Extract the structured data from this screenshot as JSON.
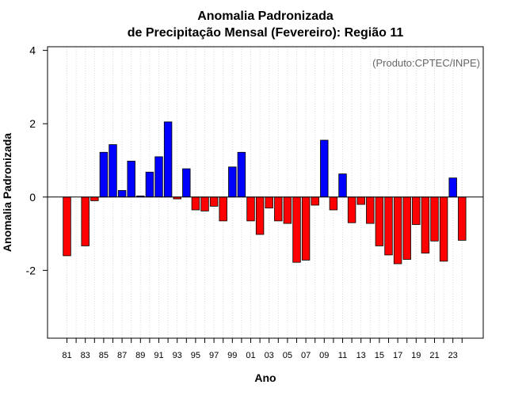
{
  "chart_data": {
    "type": "bar",
    "title_line1": "Anomalia Padronizada",
    "title_line2": "de Precipitação Mensal (Fevereiro): Região 11",
    "xlabel": "Ano",
    "ylabel": "Anomalia Padronizada",
    "credit": "(Produto:CPTEC/INPE)",
    "ylim": [
      -3.85,
      4.1
    ],
    "yticks": [
      -2,
      0,
      2,
      4
    ],
    "yticklabels": [
      "-2",
      "0",
      "2",
      "4"
    ],
    "grid": "vertical dotted lines at each year",
    "categories": [
      "81",
      "82",
      "83",
      "84",
      "85",
      "86",
      "87",
      "88",
      "89",
      "90",
      "91",
      "92",
      "93",
      "94",
      "95",
      "96",
      "97",
      "98",
      "99",
      "00",
      "01",
      "02",
      "03",
      "04",
      "05",
      "06",
      "07",
      "08",
      "09",
      "10",
      "11",
      "12",
      "13",
      "14",
      "15",
      "16",
      "17",
      "18",
      "19",
      "20",
      "21",
      "22",
      "23",
      "24"
    ],
    "xticklabels": [
      "81",
      "83",
      "85",
      "87",
      "89",
      "91",
      "93",
      "95",
      "97",
      "99",
      "01",
      "03",
      "05",
      "07",
      "09",
      "11",
      "13",
      "15",
      "17",
      "19",
      "21",
      "23"
    ],
    "values": [
      -1.6,
      0.0,
      -1.33,
      -0.1,
      1.22,
      1.43,
      0.18,
      0.98,
      0.03,
      0.68,
      1.1,
      2.05,
      -0.05,
      0.77,
      -0.35,
      -0.38,
      -0.25,
      -0.65,
      0.82,
      1.22,
      -0.65,
      -1.02,
      -0.3,
      -0.65,
      -0.72,
      -1.78,
      -1.72,
      -0.22,
      1.55,
      -0.35,
      0.63,
      -0.7,
      -0.2,
      -0.72,
      -1.33,
      -1.58,
      -1.82,
      -1.7,
      -0.75,
      -1.53,
      -1.2,
      -1.75,
      0.52,
      -1.18
    ],
    "colors": {
      "positive": "#0000ff",
      "negative": "#ff0000",
      "bar_border": "#000000",
      "grid": "#d9d9d9"
    }
  }
}
